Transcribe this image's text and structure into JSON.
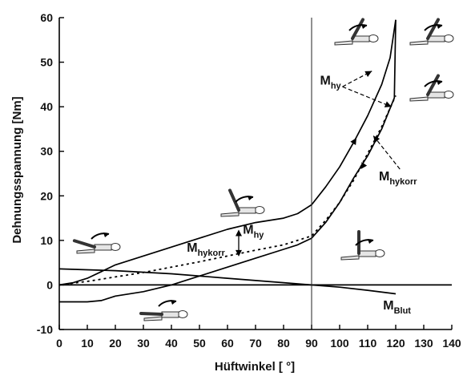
{
  "chart_data": {
    "type": "line",
    "xlabel": "Hüftwinkel [ °]",
    "ylabel": "Dehnungsspannung [Nm]",
    "xlim": [
      0,
      140
    ],
    "ylim": [
      -10,
      60
    ],
    "x_ticks": [
      "0",
      "10",
      "20",
      "30",
      "40",
      "50",
      "60",
      "70",
      "80",
      "90",
      "100",
      "110",
      "120",
      "130",
      "140"
    ],
    "y_ticks": [
      "-10",
      "0",
      "10",
      "20",
      "30",
      "40",
      "50",
      "60"
    ],
    "vertical_reference_x": 90,
    "grid": false,
    "series": [
      {
        "name": "M_hy loading",
        "style": "solid",
        "points": [
          [
            0,
            0
          ],
          [
            5,
            0.5
          ],
          [
            10,
            1.5
          ],
          [
            15,
            3.0
          ],
          [
            20,
            4.5
          ],
          [
            30,
            6.5
          ],
          [
            40,
            8.5
          ],
          [
            50,
            10.5
          ],
          [
            60,
            12.5
          ],
          [
            70,
            14.0
          ],
          [
            80,
            15.0
          ],
          [
            85,
            16.0
          ],
          [
            90,
            18.0
          ],
          [
            95,
            22.0
          ],
          [
            100,
            26.5
          ],
          [
            105,
            32.0
          ],
          [
            110,
            38.0
          ],
          [
            115,
            45.0
          ],
          [
            118,
            51.0
          ],
          [
            120,
            59.5
          ]
        ]
      },
      {
        "name": "M_hy unloading",
        "style": "solid",
        "points": [
          [
            120,
            59.5
          ],
          [
            119.5,
            42.0
          ],
          [
            115,
            35.0
          ],
          [
            110,
            29.0
          ],
          [
            105,
            24.0
          ],
          [
            100,
            18.5
          ],
          [
            95,
            14.0
          ],
          [
            90,
            10.5
          ],
          [
            85,
            9.0
          ],
          [
            80,
            8.0
          ],
          [
            70,
            6.0
          ],
          [
            60,
            4.0
          ],
          [
            50,
            2.0
          ],
          [
            40,
            0.0
          ],
          [
            30,
            -1.5
          ],
          [
            20,
            -2.5
          ],
          [
            15,
            -3.5
          ],
          [
            10,
            -3.8
          ],
          [
            5,
            -3.8
          ],
          [
            0,
            -3.8
          ]
        ]
      },
      {
        "name": "M_hykorr",
        "style": "dotted",
        "points": [
          [
            0,
            0
          ],
          [
            10,
            0.8
          ],
          [
            20,
            1.8
          ],
          [
            30,
            2.8
          ],
          [
            40,
            4.0
          ],
          [
            50,
            5.2
          ],
          [
            60,
            6.5
          ],
          [
            70,
            7.8
          ],
          [
            80,
            9.0
          ],
          [
            90,
            11.0
          ],
          [
            95,
            14.5
          ],
          [
            100,
            18.5
          ],
          [
            105,
            23.5
          ],
          [
            110,
            29.5
          ],
          [
            115,
            35.5
          ],
          [
            120,
            42.5
          ]
        ]
      },
      {
        "name": "M_Blut",
        "style": "solid",
        "points": [
          [
            0,
            3.6
          ],
          [
            20,
            3.2
          ],
          [
            40,
            2.5
          ],
          [
            60,
            1.5
          ],
          [
            80,
            0.5
          ],
          [
            90,
            0.0
          ],
          [
            100,
            -0.5
          ],
          [
            110,
            -1.2
          ],
          [
            120,
            -2.0
          ]
        ]
      },
      {
        "name": "zero line",
        "style": "solid",
        "points": [
          [
            0,
            0
          ],
          [
            140,
            0
          ]
        ]
      }
    ],
    "annotations": [
      {
        "main": "M",
        "sub": "hy",
        "x": 93,
        "y": 45
      },
      {
        "main": "M",
        "sub": "hykorr",
        "x": 114,
        "y": 23.5
      },
      {
        "main": "M",
        "sub": "hykorr",
        "x": 45.5,
        "y": 7.5
      },
      {
        "main": "M",
        "sub": "hy",
        "x": 65.5,
        "y": 11.5
      },
      {
        "main": "M",
        "sub": "Blut",
        "x": 115.5,
        "y": -5.5
      }
    ]
  }
}
